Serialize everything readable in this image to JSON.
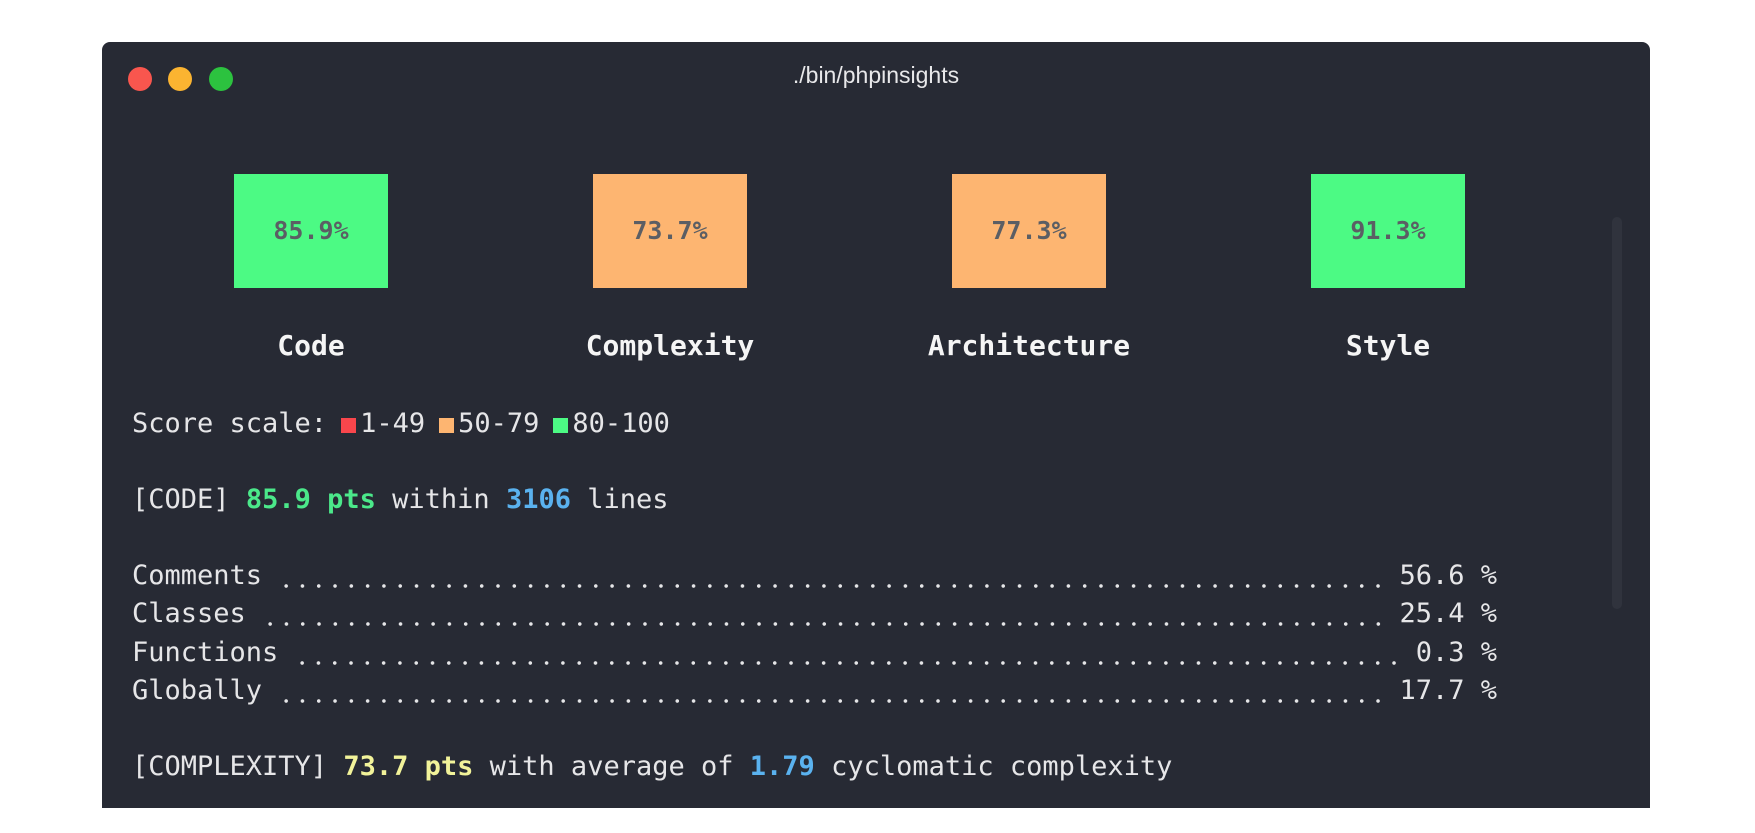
{
  "window": {
    "title": "./bin/phpinsights"
  },
  "scores": [
    {
      "value": "85.9%",
      "label": "Code",
      "color": "#4cfa84"
    },
    {
      "value": "73.7%",
      "label": "Complexity",
      "color": "#fdb571"
    },
    {
      "value": "77.3%",
      "label": "Architecture",
      "color": "#fdb571"
    },
    {
      "value": "91.3%",
      "label": "Style",
      "color": "#4cfa84"
    }
  ],
  "scale": {
    "label": "Score scale:",
    "items": [
      {
        "range": "1-49",
        "color": "#f9464c"
      },
      {
        "range": "50-79",
        "color": "#fdb571"
      },
      {
        "range": "80-100",
        "color": "#4cfa84"
      }
    ]
  },
  "code": {
    "tag": "[CODE]",
    "points": "85.9 pts",
    "mid": "within",
    "lines": "3106",
    "end": "lines"
  },
  "metrics": [
    {
      "name": "Comments",
      "value": "56.6 %"
    },
    {
      "name": "Classes",
      "value": "25.4 %"
    },
    {
      "name": "Functions",
      "value": "0.3 %"
    },
    {
      "name": "Globally",
      "value": "17.7 %"
    }
  ],
  "complexity": {
    "tag": "[COMPLEXITY]",
    "points": "73.7 pts",
    "mid": "with average of",
    "average": "1.79",
    "end": "cyclomatic complexity"
  }
}
